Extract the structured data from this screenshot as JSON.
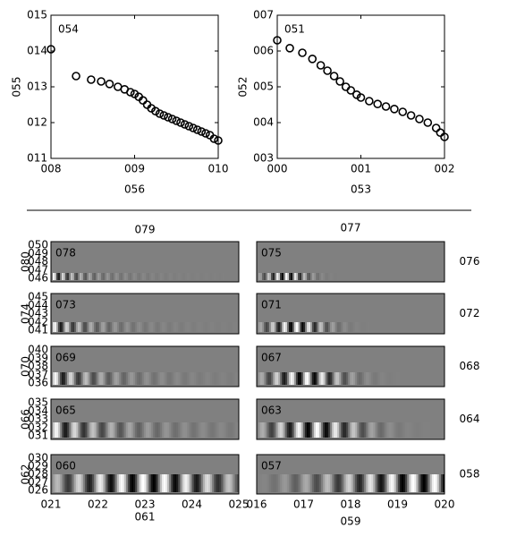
{
  "chart_data": [
    {
      "type": "scatter",
      "annotation": "054",
      "ylabel": "055",
      "xlabel": "056",
      "xlim": [
        8,
        10
      ],
      "ylim": [
        11,
        15
      ],
      "xticks": [
        {
          "value": 8,
          "label": "008"
        },
        {
          "value": 9,
          "label": "009"
        },
        {
          "value": 10,
          "label": "010"
        }
      ],
      "yticks": [
        {
          "value": 11,
          "label": "011"
        },
        {
          "value": 12,
          "label": "012"
        },
        {
          "value": 13,
          "label": "013"
        },
        {
          "value": 14,
          "label": "014"
        },
        {
          "value": 15,
          "label": "015"
        }
      ],
      "color": "#000000",
      "x": [
        8.0,
        8.3,
        8.48,
        8.6,
        8.7,
        8.8,
        8.88,
        8.95,
        9.0,
        9.05,
        9.1,
        9.15,
        9.2,
        9.25,
        9.3,
        9.35,
        9.4,
        9.45,
        9.5,
        9.55,
        9.6,
        9.65,
        9.7,
        9.75,
        9.8,
        9.85,
        9.9,
        9.95,
        10.0
      ],
      "values": [
        14.05,
        13.3,
        13.2,
        13.15,
        13.08,
        13.0,
        12.93,
        12.85,
        12.8,
        12.72,
        12.62,
        12.5,
        12.4,
        12.32,
        12.25,
        12.2,
        12.15,
        12.1,
        12.05,
        12.0,
        11.95,
        11.9,
        11.85,
        11.8,
        11.75,
        11.7,
        11.65,
        11.55,
        11.5
      ]
    },
    {
      "type": "scatter",
      "annotation": "051",
      "ylabel": "052",
      "xlabel": "053",
      "xlim": [
        0,
        2
      ],
      "ylim": [
        3,
        7
      ],
      "xticks": [
        {
          "value": 0,
          "label": "000"
        },
        {
          "value": 1,
          "label": "001"
        },
        {
          "value": 2,
          "label": "002"
        }
      ],
      "yticks": [
        {
          "value": 3,
          "label": "003"
        },
        {
          "value": 4,
          "label": "004"
        },
        {
          "value": 5,
          "label": "005"
        },
        {
          "value": 6,
          "label": "006"
        },
        {
          "value": 7,
          "label": "007"
        }
      ],
      "color": "#000000",
      "x": [
        0.0,
        0.15,
        0.3,
        0.42,
        0.52,
        0.6,
        0.68,
        0.75,
        0.82,
        0.88,
        0.95,
        1.0,
        1.1,
        1.2,
        1.3,
        1.4,
        1.5,
        1.6,
        1.7,
        1.8,
        1.9,
        1.95,
        2.0
      ],
      "values": [
        6.3,
        6.08,
        5.95,
        5.78,
        5.6,
        5.45,
        5.3,
        5.15,
        5.0,
        4.9,
        4.78,
        4.7,
        4.6,
        4.52,
        4.45,
        4.38,
        4.3,
        4.2,
        4.1,
        4.0,
        3.85,
        3.72,
        3.6
      ]
    }
  ],
  "panel_grid": {
    "column_titles": [
      "079",
      "077"
    ],
    "xlabels": [
      "061",
      "059"
    ],
    "xticks": [
      [
        "021",
        "022",
        "023",
        "024",
        "025"
      ],
      [
        "016",
        "017",
        "018",
        "019",
        "020"
      ]
    ],
    "rows": [
      {
        "ylabel": "080",
        "yticks": [
          "050",
          "049",
          "048",
          "047",
          "046"
        ],
        "side_label": "076",
        "panel_labels": [
          "078",
          "075"
        ]
      },
      {
        "ylabel": "074",
        "yticks": [
          "045",
          "044",
          "043",
          "042",
          "041"
        ],
        "side_label": "072",
        "panel_labels": [
          "073",
          "071"
        ]
      },
      {
        "ylabel": "070",
        "yticks": [
          "040",
          "039",
          "038",
          "037",
          "036"
        ],
        "side_label": "068",
        "panel_labels": [
          "069",
          "067"
        ]
      },
      {
        "ylabel": "066",
        "yticks": [
          "035",
          "034",
          "033",
          "032",
          "031"
        ],
        "side_label": "064",
        "panel_labels": [
          "065",
          "063"
        ]
      },
      {
        "ylabel": "062",
        "yticks": [
          "030",
          "029",
          "028",
          "027",
          "026"
        ],
        "side_label": "058",
        "panel_labels": [
          "060",
          "057"
        ]
      }
    ]
  }
}
